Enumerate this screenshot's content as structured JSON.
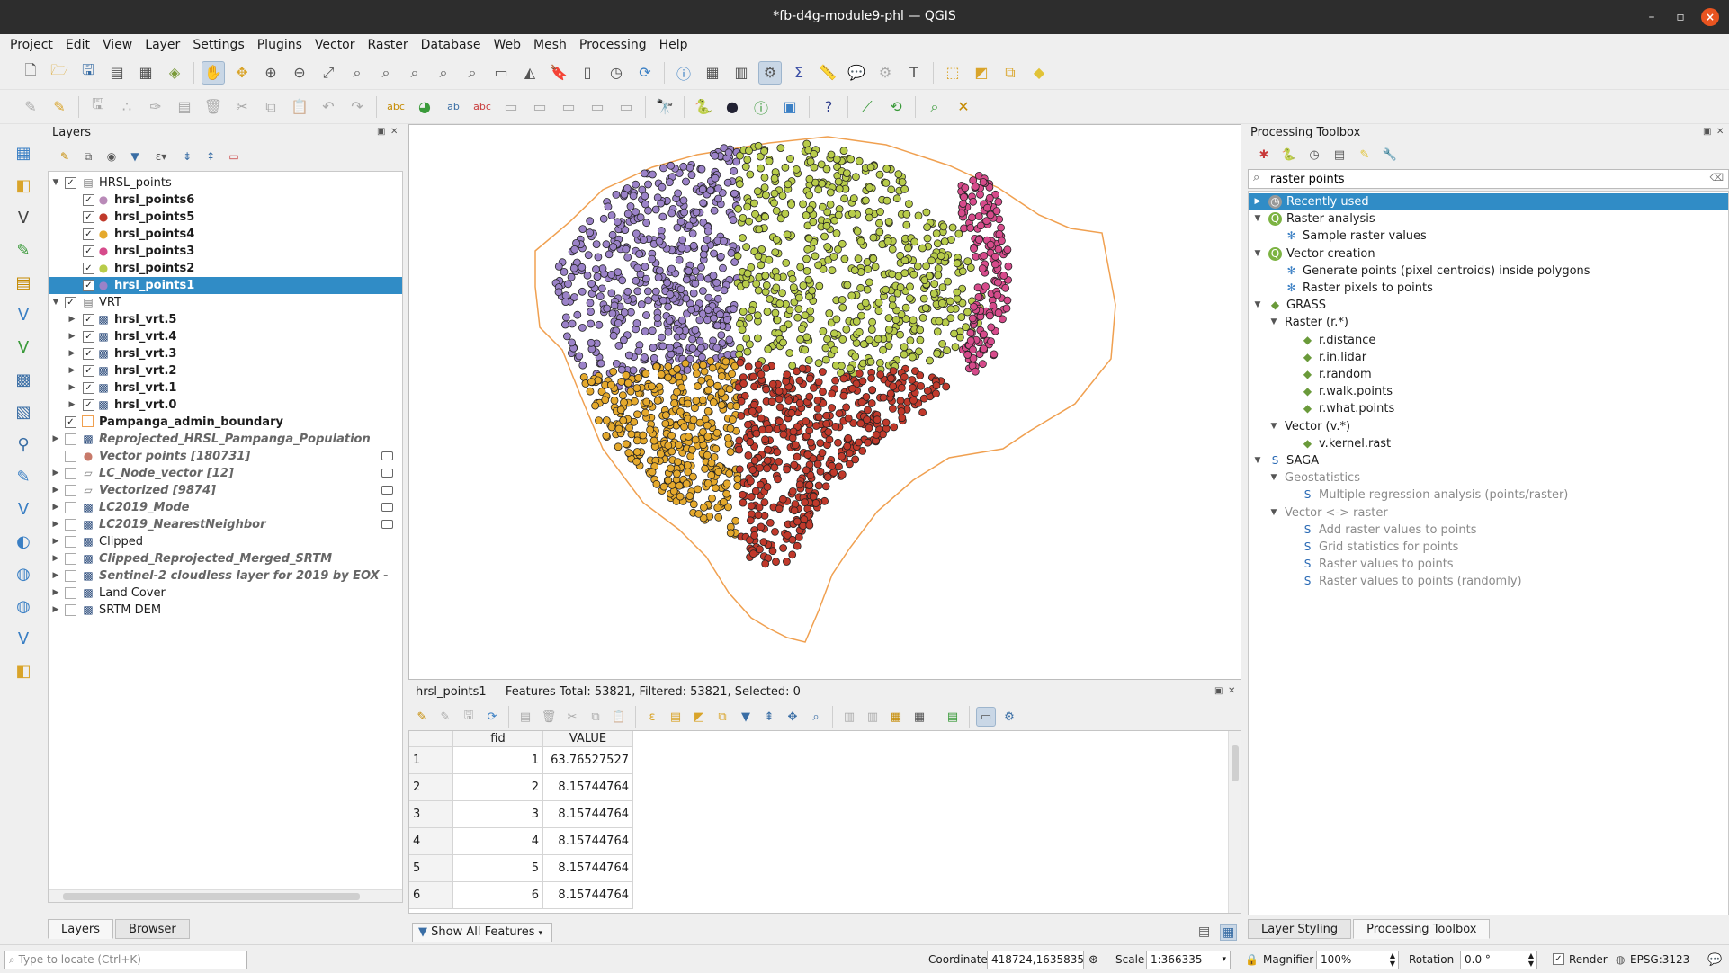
{
  "window": {
    "title": "*fb-d4g-module9-phl — QGIS"
  },
  "menubar": [
    "Project",
    "Edit",
    "View",
    "Layer",
    "Settings",
    "Plugins",
    "Vector",
    "Raster",
    "Database",
    "Web",
    "Mesh",
    "Processing",
    "Help"
  ],
  "layers_panel": {
    "title": "Layers",
    "items": [
      {
        "label": "HRSL_points",
        "kind": "group"
      },
      {
        "label": "hrsl_points6",
        "kind": "points",
        "color": "#b98ab8"
      },
      {
        "label": "hrsl_points5",
        "kind": "points",
        "color": "#c0392b"
      },
      {
        "label": "hrsl_points4",
        "kind": "points",
        "color": "#e5a92c"
      },
      {
        "label": "hrsl_points3",
        "kind": "points",
        "color": "#d64b8b"
      },
      {
        "label": "hrsl_points2",
        "kind": "points",
        "color": "#b8cc4a"
      },
      {
        "label": "hrsl_points1",
        "kind": "points",
        "color": "#9b82c8"
      },
      {
        "label": "VRT",
        "kind": "group"
      },
      {
        "label": "hrsl_vrt.5",
        "kind": "raster"
      },
      {
        "label": "hrsl_vrt.4",
        "kind": "raster"
      },
      {
        "label": "hrsl_vrt.3",
        "kind": "raster"
      },
      {
        "label": "hrsl_vrt.2",
        "kind": "raster"
      },
      {
        "label": "hrsl_vrt.1",
        "kind": "raster"
      },
      {
        "label": "hrsl_vrt.0",
        "kind": "raster"
      },
      {
        "label": "Pampanga_admin_boundary",
        "kind": "polygon"
      },
      {
        "label": "Reprojected_HRSL_Pampanga_Population",
        "kind": "raster"
      },
      {
        "label": "Vector points [180731]",
        "kind": "points"
      },
      {
        "label": "LC_Node_vector [12]",
        "kind": "polygon"
      },
      {
        "label": "Vectorized [9874]",
        "kind": "polygon"
      },
      {
        "label": "LC2019_Mode",
        "kind": "raster"
      },
      {
        "label": "LC2019_NearestNeighbor",
        "kind": "raster"
      },
      {
        "label": "Clipped",
        "kind": "raster"
      },
      {
        "label": "Clipped_Reprojected_Merged_SRTM",
        "kind": "raster"
      },
      {
        "label": "Sentinel-2 cloudless layer for 2019 by EOX - ",
        "kind": "raster"
      },
      {
        "label": "Land Cover",
        "kind": "raster"
      },
      {
        "label": "SRTM DEM",
        "kind": "raster"
      }
    ],
    "tabs": [
      "Layers",
      "Browser"
    ]
  },
  "attribute_table": {
    "title": "hrsl_points1 — Features Total: 53821, Filtered: 53821, Selected: 0",
    "columns": [
      "fid",
      "VALUE"
    ],
    "rows": [
      {
        "n": "1",
        "fid": "1",
        "value": "63.76527527"
      },
      {
        "n": "2",
        "fid": "2",
        "value": "8.15744764"
      },
      {
        "n": "3",
        "fid": "3",
        "value": "8.15744764"
      },
      {
        "n": "4",
        "fid": "4",
        "value": "8.15744764"
      },
      {
        "n": "5",
        "fid": "5",
        "value": "8.15744764"
      },
      {
        "n": "6",
        "fid": "6",
        "value": "8.15744764"
      }
    ],
    "filter_button": "Show All Features"
  },
  "toolbox": {
    "title": "Processing Toolbox",
    "search_value": "raster points",
    "tree": [
      {
        "label": "Recently used",
        "level": 0,
        "icon": "clock-icon"
      },
      {
        "label": "Raster analysis",
        "level": 0,
        "icon": "qgis-icon"
      },
      {
        "label": "Sample raster values",
        "level": 1,
        "icon": "gear-icon"
      },
      {
        "label": "Vector creation",
        "level": 0,
        "icon": "qgis-icon"
      },
      {
        "label": "Generate points (pixel centroids) inside polygons",
        "level": 1,
        "icon": "gear-icon"
      },
      {
        "label": "Raster pixels to points",
        "level": 1,
        "icon": "gear-icon"
      },
      {
        "label": "GRASS",
        "level": 0,
        "icon": "grass-icon"
      },
      {
        "label": "Raster (r.*)",
        "level": 1,
        "icon": ""
      },
      {
        "label": "r.distance",
        "level": 2,
        "icon": "grass-icon"
      },
      {
        "label": "r.in.lidar",
        "level": 2,
        "icon": "grass-icon"
      },
      {
        "label": "r.random",
        "level": 2,
        "icon": "grass-icon"
      },
      {
        "label": "r.walk.points",
        "level": 2,
        "icon": "grass-icon"
      },
      {
        "label": "r.what.points",
        "level": 2,
        "icon": "grass-icon"
      },
      {
        "label": "Vector (v.*)",
        "level": 1,
        "icon": ""
      },
      {
        "label": "v.kernel.rast",
        "level": 2,
        "icon": "grass-icon"
      },
      {
        "label": "SAGA",
        "level": 0,
        "icon": "saga-icon"
      },
      {
        "label": "Geostatistics",
        "level": 1,
        "icon": ""
      },
      {
        "label": "Multiple regression analysis (points/raster)",
        "level": 2,
        "icon": "saga-icon"
      },
      {
        "label": "Vector <-> raster",
        "level": 1,
        "icon": ""
      },
      {
        "label": "Add raster values to points",
        "level": 2,
        "icon": "saga-icon"
      },
      {
        "label": "Grid statistics for points",
        "level": 2,
        "icon": "saga-icon"
      },
      {
        "label": "Raster values to points",
        "level": 2,
        "icon": "saga-icon"
      },
      {
        "label": "Raster values to points (randomly)",
        "level": 2,
        "icon": "saga-icon"
      }
    ],
    "tabs": [
      "Layer Styling",
      "Processing Toolbox"
    ]
  },
  "statusbar": {
    "locator_placeholder": "Type to locate (Ctrl+K)",
    "coordinate_label": "Coordinate",
    "coordinate_value": "418724,1635835",
    "scale_label": "Scale",
    "scale_value": "1:366335",
    "magnifier_label": "Magnifier",
    "magnifier_value": "100%",
    "rotation_label": "Rotation",
    "rotation_value": "0.0 °",
    "render_label": "Render",
    "crs": "EPSG:3123"
  },
  "map_colors": {
    "purple": "#9b82c8",
    "olive": "#b8cc4a",
    "pink": "#d64b8b",
    "red": "#c0392b",
    "gold": "#e5a92c",
    "boundary": "#f0a050",
    "selection": "#308cc6"
  }
}
